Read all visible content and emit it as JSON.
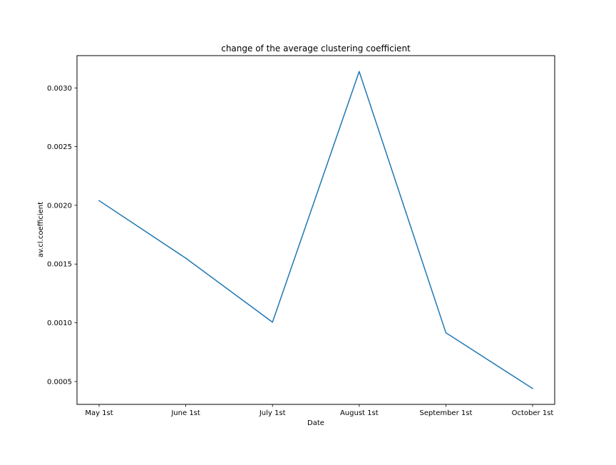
{
  "chart_data": {
    "type": "line",
    "title": "change of the average clustering coefficient",
    "xlabel": "Date",
    "ylabel": "av.cl.coefficient",
    "categories": [
      "May 1st",
      "June 1st",
      "July 1st",
      "August 1st",
      "September 1st",
      "October 1st"
    ],
    "series": [
      {
        "values": [
          0.00204,
          0.00155,
          0.001005,
          0.00314,
          0.000915,
          0.00044
        ],
        "color": "#1f77b4"
      }
    ],
    "yticks": [
      "0.0005",
      "0.0010",
      "0.0015",
      "0.0020",
      "0.0025",
      "0.0030"
    ],
    "ylim": [
      0.000305,
      0.003275
    ],
    "grid": false,
    "legend": "none"
  }
}
